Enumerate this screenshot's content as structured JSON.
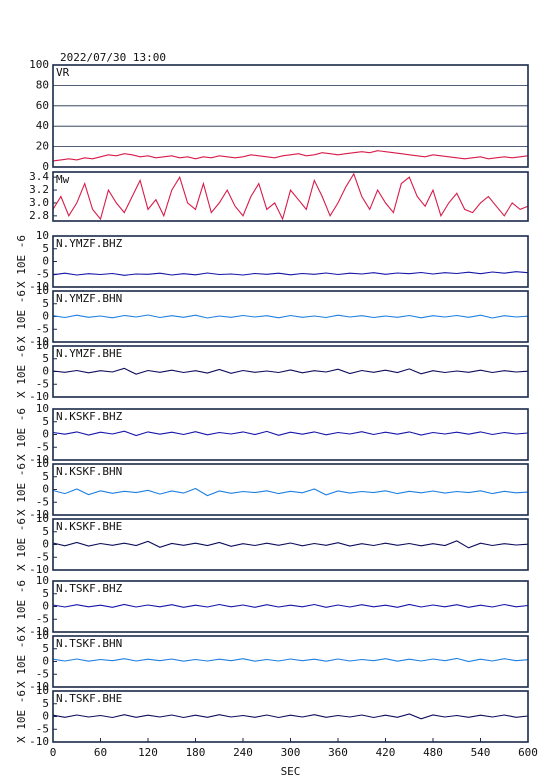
{
  "chart_data": [
    {
      "type": "line",
      "title": "2022/07/30 13:00",
      "xlim": [
        0,
        600
      ],
      "ylim": [
        0,
        100
      ],
      "yticks": [
        0,
        20,
        40,
        60,
        80,
        100
      ],
      "grid": true,
      "x": [
        0,
        10,
        20,
        30,
        40,
        50,
        60,
        70,
        80,
        90,
        100,
        110,
        120,
        130,
        140,
        150,
        160,
        170,
        180,
        190,
        200,
        210,
        220,
        230,
        240,
        250,
        260,
        270,
        280,
        290,
        300,
        310,
        320,
        330,
        340,
        350,
        360,
        370,
        380,
        390,
        400,
        410,
        420,
        430,
        440,
        450,
        460,
        470,
        480,
        490,
        500,
        510,
        520,
        530,
        540,
        550,
        560,
        570,
        580,
        590,
        600
      ],
      "series": [
        {
          "name": "VR",
          "color": "#d81b4a",
          "values": [
            6,
            7,
            8,
            7,
            9,
            8,
            10,
            12,
            11,
            13,
            12,
            10,
            11,
            9,
            10,
            11,
            9,
            10,
            8,
            10,
            9,
            11,
            10,
            9,
            10,
            12,
            11,
            10,
            9,
            11,
            12,
            13,
            11,
            12,
            14,
            13,
            12,
            13,
            14,
            15,
            14,
            16,
            15,
            14,
            13,
            12,
            11,
            10,
            12,
            11,
            10,
            9,
            8,
            9,
            10,
            8,
            9,
            10,
            9,
            10,
            11
          ]
        }
      ]
    },
    {
      "type": "line",
      "xlim": [
        0,
        600
      ],
      "ylim": [
        2.72,
        3.48
      ],
      "yticks": [
        2.8,
        {
          "value": 3,
          "label": "3.0"
        },
        3.2,
        3.4
      ],
      "x": [
        0,
        10,
        20,
        30,
        40,
        50,
        60,
        70,
        80,
        90,
        100,
        110,
        120,
        130,
        140,
        150,
        160,
        170,
        180,
        190,
        200,
        210,
        220,
        230,
        240,
        250,
        260,
        270,
        280,
        290,
        300,
        310,
        320,
        330,
        340,
        350,
        360,
        370,
        380,
        390,
        400,
        410,
        420,
        430,
        440,
        450,
        460,
        470,
        480,
        490,
        500,
        510,
        520,
        530,
        540,
        550,
        560,
        570,
        580,
        590,
        600
      ],
      "series": [
        {
          "name": "Mw",
          "color": "#d81b4a",
          "values": [
            2.9,
            3.1,
            2.8,
            3.0,
            3.3,
            2.9,
            2.75,
            3.2,
            3.0,
            2.85,
            3.1,
            3.35,
            2.9,
            3.05,
            2.8,
            3.2,
            3.4,
            3.0,
            2.9,
            3.3,
            2.85,
            3.0,
            3.2,
            2.95,
            2.8,
            3.1,
            3.3,
            2.9,
            3.0,
            2.75,
            3.2,
            3.05,
            2.9,
            3.35,
            3.1,
            2.8,
            3.0,
            3.25,
            3.45,
            3.1,
            2.9,
            3.2,
            3.0,
            2.85,
            3.3,
            3.4,
            3.1,
            2.95,
            3.2,
            2.8,
            3.0,
            3.15,
            2.9,
            2.85,
            3.0,
            3.1,
            2.95,
            2.8,
            3.0,
            2.9,
            2.95
          ]
        }
      ]
    },
    {
      "type": "line",
      "ylabel": "X 10E -6",
      "xlim": [
        0,
        600
      ],
      "ylim": [
        -10,
        10
      ],
      "yticks": [
        -10,
        -5,
        0,
        5,
        10
      ],
      "x": [
        0,
        15,
        30,
        45,
        60,
        75,
        90,
        105,
        120,
        135,
        150,
        165,
        180,
        195,
        210,
        225,
        240,
        255,
        270,
        285,
        300,
        315,
        330,
        345,
        360,
        375,
        390,
        405,
        420,
        435,
        450,
        465,
        480,
        495,
        510,
        525,
        540,
        555,
        570,
        585,
        600
      ],
      "series": [
        {
          "name": "N.YMZF.BHZ",
          "color": "#1414a8",
          "values": [
            -5.2,
            -4.6,
            -5.3,
            -4.8,
            -5.1,
            -4.7,
            -5.4,
            -4.9,
            -5.0,
            -4.6,
            -5.3,
            -4.8,
            -5.2,
            -4.5,
            -5.1,
            -4.9,
            -5.3,
            -4.7,
            -5.0,
            -4.6,
            -5.2,
            -4.7,
            -5.0,
            -4.5,
            -5.1,
            -4.6,
            -4.9,
            -4.4,
            -5.0,
            -4.5,
            -4.8,
            -4.3,
            -4.9,
            -4.4,
            -4.7,
            -4.2,
            -4.8,
            -4.1,
            -4.6,
            -4.0,
            -4.4
          ]
        }
      ]
    },
    {
      "type": "line",
      "ylabel": "X 10E -6",
      "xlim": [
        0,
        600
      ],
      "ylim": [
        -10,
        10
      ],
      "yticks": [
        -10,
        -5,
        0,
        5,
        10
      ],
      "x": [
        0,
        15,
        30,
        45,
        60,
        75,
        90,
        105,
        120,
        135,
        150,
        165,
        180,
        195,
        210,
        225,
        240,
        255,
        270,
        285,
        300,
        315,
        330,
        345,
        360,
        375,
        390,
        405,
        420,
        435,
        450,
        465,
        480,
        495,
        510,
        525,
        540,
        555,
        570,
        585,
        600
      ],
      "series": [
        {
          "name": "N.YMZF.BHN",
          "color": "#1e7fe0",
          "values": [
            0.3,
            -0.4,
            0.5,
            -0.3,
            0.2,
            -0.5,
            0.4,
            -0.2,
            0.6,
            -0.4,
            0.3,
            -0.3,
            0.5,
            -0.6,
            0.2,
            -0.3,
            0.4,
            -0.2,
            0.3,
            -0.5,
            0.4,
            -0.3,
            0.2,
            -0.4,
            0.5,
            -0.2,
            0.3,
            -0.4,
            0.2,
            -0.3,
            0.4,
            -0.5,
            0.3,
            -0.2,
            0.4,
            -0.3,
            0.5,
            -0.6,
            0.3,
            -0.2,
            0.1
          ]
        }
      ]
    },
    {
      "type": "line",
      "ylabel": "X 10E -6",
      "xlim": [
        0,
        600
      ],
      "ylim": [
        -10,
        10
      ],
      "yticks": [
        -10,
        -5,
        0,
        5,
        10
      ],
      "x": [
        0,
        15,
        30,
        45,
        60,
        75,
        90,
        105,
        120,
        135,
        150,
        165,
        180,
        195,
        210,
        225,
        240,
        255,
        270,
        285,
        300,
        315,
        330,
        345,
        360,
        375,
        390,
        405,
        420,
        435,
        450,
        465,
        480,
        495,
        510,
        525,
        540,
        555,
        570,
        585,
        600
      ],
      "series": [
        {
          "name": "N.YMZF.BHE",
          "color": "#0c0c5c",
          "values": [
            0.2,
            -0.3,
            0.4,
            -0.5,
            0.3,
            -0.2,
            1.2,
            -1.0,
            0.4,
            -0.3,
            0.5,
            -0.4,
            0.3,
            -0.6,
            0.8,
            -0.7,
            0.4,
            -0.3,
            0.2,
            -0.4,
            0.6,
            -0.5,
            0.3,
            -0.2,
            0.9,
            -0.8,
            0.4,
            -0.3,
            0.5,
            -0.4,
            1.0,
            -0.9,
            0.3,
            -0.4,
            0.2,
            -0.3,
            0.5,
            -0.4,
            0.3,
            -0.2,
            0.1
          ]
        }
      ]
    },
    {
      "type": "line",
      "ylabel": "X 10E -6",
      "xlim": [
        0,
        600
      ],
      "ylim": [
        -10,
        10
      ],
      "yticks": [
        -10,
        -5,
        0,
        5,
        10
      ],
      "x": [
        0,
        15,
        30,
        45,
        60,
        75,
        90,
        105,
        120,
        135,
        150,
        165,
        180,
        195,
        210,
        225,
        240,
        255,
        270,
        285,
        300,
        315,
        330,
        345,
        360,
        375,
        390,
        405,
        420,
        435,
        450,
        465,
        480,
        495,
        510,
        525,
        540,
        555,
        570,
        585,
        600
      ],
      "series": [
        {
          "name": "N.KSKF.BHZ",
          "color": "#1414a8",
          "values": [
            0.8,
            0.1,
            1.0,
            -0.2,
            0.9,
            0.2,
            1.3,
            -0.4,
            1.0,
            0.1,
            0.9,
            0.0,
            1.1,
            -0.1,
            0.8,
            0.2,
            1.0,
            0.0,
            1.2,
            -0.3,
            0.9,
            0.1,
            1.0,
            -0.1,
            0.8,
            0.2,
            1.1,
            0.0,
            0.9,
            0.1,
            1.0,
            -0.2,
            0.8,
            0.2,
            0.9,
            0.1,
            1.0,
            0.0,
            0.8,
            0.2,
            0.6
          ]
        }
      ]
    },
    {
      "type": "line",
      "ylabel": "X 10E -6",
      "xlim": [
        0,
        600
      ],
      "ylim": [
        -10,
        10
      ],
      "yticks": [
        -10,
        -5,
        0,
        5,
        10
      ],
      "x": [
        0,
        15,
        30,
        45,
        60,
        75,
        90,
        105,
        120,
        135,
        150,
        165,
        180,
        195,
        210,
        225,
        240,
        255,
        270,
        285,
        300,
        315,
        330,
        345,
        360,
        375,
        390,
        405,
        420,
        435,
        450,
        465,
        480,
        495,
        510,
        525,
        540,
        555,
        570,
        585,
        600
      ],
      "series": [
        {
          "name": "N.KSKF.BHN",
          "color": "#1e7fe0",
          "values": [
            -0.4,
            -1.6,
            0.2,
            -2.0,
            -0.5,
            -1.5,
            -0.7,
            -1.2,
            -0.3,
            -1.8,
            -0.6,
            -1.4,
            0.4,
            -2.4,
            -0.6,
            -1.5,
            -0.8,
            -1.2,
            -0.5,
            -1.6,
            -0.7,
            -1.3,
            0.2,
            -2.1,
            -0.6,
            -1.4,
            -0.8,
            -1.2,
            -0.5,
            -1.6,
            -0.7,
            -1.3,
            -0.6,
            -1.4,
            -0.8,
            -1.2,
            -0.5,
            -1.6,
            -0.7,
            -1.3,
            -1.0
          ]
        }
      ]
    },
    {
      "type": "line",
      "ylabel": "X 10E -6",
      "xlim": [
        0,
        600
      ],
      "ylim": [
        -10,
        10
      ],
      "yticks": [
        -10,
        -5,
        0,
        5,
        10
      ],
      "x": [
        0,
        15,
        30,
        45,
        60,
        75,
        90,
        105,
        120,
        135,
        150,
        165,
        180,
        195,
        210,
        225,
        240,
        255,
        270,
        285,
        300,
        315,
        330,
        345,
        360,
        375,
        390,
        405,
        420,
        435,
        450,
        465,
        480,
        495,
        510,
        525,
        540,
        555,
        570,
        585,
        600
      ],
      "series": [
        {
          "name": "N.KSKF.BHE",
          "color": "#0c0c5c",
          "values": [
            0.6,
            -0.5,
            0.8,
            -0.6,
            0.4,
            -0.3,
            0.5,
            -0.4,
            1.2,
            -1.1,
            0.4,
            -0.3,
            0.5,
            -0.4,
            0.8,
            -0.7,
            0.3,
            -0.4,
            0.5,
            -0.3,
            0.6,
            -0.5,
            0.4,
            -0.3,
            0.7,
            -0.6,
            0.3,
            -0.4,
            0.5,
            -0.3,
            0.4,
            -0.5,
            0.3,
            -0.4,
            1.4,
            -1.3,
            0.5,
            -0.4,
            0.3,
            -0.2,
            0.1
          ]
        }
      ]
    },
    {
      "type": "line",
      "ylabel": "X 10E -6",
      "xlim": [
        0,
        600
      ],
      "ylim": [
        -10,
        10
      ],
      "yticks": [
        -10,
        -5,
        0,
        5,
        10
      ],
      "x": [
        0,
        15,
        30,
        45,
        60,
        75,
        90,
        105,
        120,
        135,
        150,
        165,
        180,
        195,
        210,
        225,
        240,
        255,
        270,
        285,
        300,
        315,
        330,
        345,
        360,
        375,
        390,
        405,
        420,
        435,
        450,
        465,
        480,
        495,
        510,
        525,
        540,
        555,
        570,
        585,
        600
      ],
      "series": [
        {
          "name": "N.TSKF.BHZ",
          "color": "#1414a8",
          "values": [
            0.6,
            -0.2,
            0.7,
            -0.1,
            0.5,
            -0.3,
            0.8,
            -0.2,
            0.6,
            -0.1,
            0.7,
            -0.3,
            0.5,
            -0.2,
            0.8,
            -0.1,
            0.6,
            -0.3,
            0.7,
            -0.2,
            0.5,
            -0.1,
            0.8,
            -0.3,
            0.6,
            -0.2,
            0.7,
            -0.1,
            0.5,
            -0.3,
            0.8,
            -0.2,
            0.6,
            -0.1,
            0.7,
            -0.3,
            0.5,
            -0.2,
            0.8,
            -0.1,
            0.4
          ]
        }
      ]
    },
    {
      "type": "line",
      "ylabel": "X 10E -6",
      "xlim": [
        0,
        600
      ],
      "ylim": [
        -10,
        10
      ],
      "yticks": [
        -10,
        -5,
        0,
        5,
        10
      ],
      "x": [
        0,
        15,
        30,
        45,
        60,
        75,
        90,
        105,
        120,
        135,
        150,
        165,
        180,
        195,
        210,
        225,
        240,
        255,
        270,
        285,
        300,
        315,
        330,
        345,
        360,
        375,
        390,
        405,
        420,
        435,
        450,
        465,
        480,
        495,
        510,
        525,
        540,
        555,
        570,
        585,
        600
      ],
      "series": [
        {
          "name": "N.TSKF.BHN",
          "color": "#1e7fe0",
          "values": [
            0.9,
            0.2,
            1.0,
            0.1,
            0.8,
            0.3,
            1.1,
            0.2,
            0.9,
            0.3,
            1.0,
            0.1,
            0.8,
            0.2,
            0.9,
            0.3,
            1.1,
            0.1,
            0.8,
            0.2,
            1.0,
            0.3,
            0.9,
            0.1,
            1.0,
            0.2,
            0.8,
            0.3,
            1.1,
            0.1,
            0.9,
            0.2,
            1.0,
            0.3,
            1.2,
            0.0,
            0.9,
            0.2,
            1.1,
            0.3,
            0.7
          ]
        }
      ]
    },
    {
      "type": "line",
      "ylabel": "X 10E -6",
      "xlabel": "SEC",
      "xlim": [
        0,
        600
      ],
      "ylim": [
        -10,
        10
      ],
      "yticks": [
        -10,
        -5,
        0,
        5,
        10
      ],
      "xticks": [
        0,
        60,
        120,
        180,
        240,
        300,
        360,
        420,
        480,
        540,
        600
      ],
      "x": [
        0,
        15,
        30,
        45,
        60,
        75,
        90,
        105,
        120,
        135,
        150,
        165,
        180,
        195,
        210,
        225,
        240,
        255,
        270,
        285,
        300,
        315,
        330,
        345,
        360,
        375,
        390,
        405,
        420,
        435,
        450,
        465,
        480,
        495,
        510,
        525,
        540,
        555,
        570,
        585,
        600
      ],
      "series": [
        {
          "name": "N.TSKF.BHE",
          "color": "#0c0c5c",
          "values": [
            0.5,
            -0.3,
            0.6,
            -0.2,
            0.4,
            -0.4,
            0.7,
            -0.3,
            0.5,
            -0.2,
            0.6,
            -0.4,
            0.5,
            -0.3,
            0.7,
            -0.2,
            0.4,
            -0.3,
            0.6,
            -0.4,
            0.5,
            -0.2,
            0.7,
            -0.3,
            0.4,
            -0.2,
            0.6,
            -0.4,
            0.5,
            -0.3,
            1.0,
            -0.9,
            0.6,
            -0.2,
            0.4,
            -0.3,
            0.5,
            -0.2,
            0.6,
            -0.3,
            0.2
          ]
        }
      ]
    }
  ]
}
